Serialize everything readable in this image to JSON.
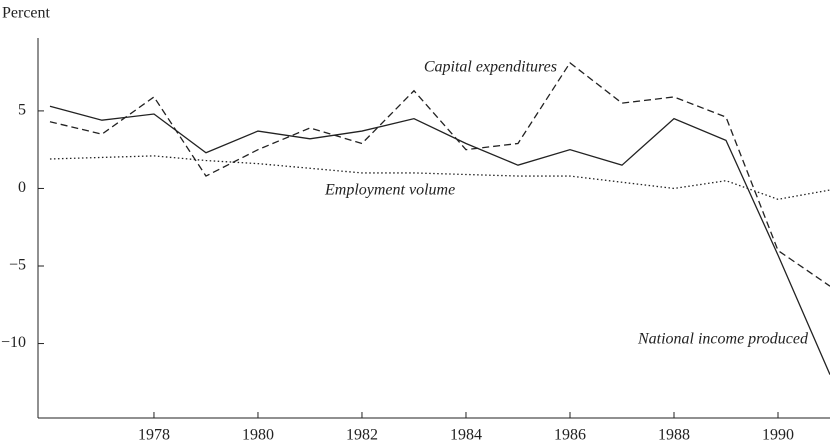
{
  "chart_data": {
    "type": "line",
    "y_axis_label": "Percent",
    "x": [
      1976,
      1977,
      1978,
      1979,
      1980,
      1981,
      1982,
      1983,
      1984,
      1985,
      1986,
      1987,
      1988,
      1989,
      1990,
      1991
    ],
    "series": [
      {
        "name": "National income produced",
        "color": "#222222",
        "dash": "solid",
        "values": [
          5.3,
          4.4,
          4.8,
          2.3,
          3.7,
          3.2,
          3.7,
          4.5,
          2.9,
          1.5,
          2.5,
          1.5,
          4.5,
          3.1,
          -4.3,
          -12.0
        ]
      },
      {
        "name": "Capital expenditures",
        "color": "#222222",
        "dash": "dashed",
        "values": [
          4.3,
          3.5,
          5.9,
          0.8,
          2.5,
          3.9,
          2.9,
          6.3,
          2.5,
          2.9,
          8.1,
          5.5,
          5.9,
          4.6,
          -4.0,
          -6.3
        ]
      },
      {
        "name": "Employment volume",
        "color": "#222222",
        "dash": "dotted",
        "values": [
          1.9,
          2.0,
          2.1,
          1.8,
          1.6,
          1.3,
          1.0,
          1.0,
          0.9,
          0.8,
          0.8,
          0.4,
          0.0,
          0.5,
          -0.7,
          -0.1
        ]
      }
    ],
    "xlim": [
      1975.77,
      1991
    ],
    "xticks": [
      1978,
      1980,
      1982,
      1984,
      1986,
      1988,
      1990
    ],
    "ylim": [
      -14.8,
      9.7
    ],
    "yticks": [
      {
        "value": 5,
        "label": "5"
      },
      {
        "value": 0,
        "label": "0"
      },
      {
        "value": -5,
        "label": "−5"
      },
      {
        "value": -10,
        "label": "−10"
      }
    ],
    "grid": false
  }
}
